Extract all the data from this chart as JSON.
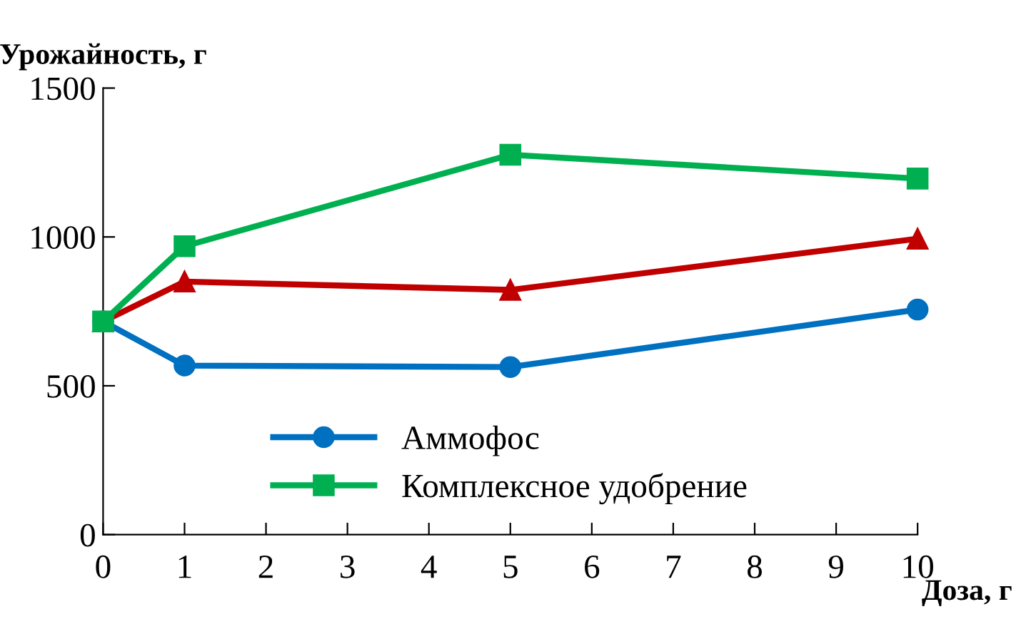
{
  "chart_data": {
    "type": "line",
    "ylabel": "Урожайность, г",
    "xlabel": "Доза, г",
    "x": [
      0,
      1,
      5,
      10
    ],
    "series": [
      {
        "name": "Аммофос",
        "color": "#0070c0",
        "marker": "circle",
        "values": [
          716,
          568,
          563,
          756
        ]
      },
      {
        "color": "#c00000",
        "marker": "triangle",
        "values": [
          716,
          850,
          822,
          994
        ]
      },
      {
        "name": "Комплексное удобрение",
        "color": "#00b050",
        "marker": "square",
        "values": [
          716,
          969,
          1276,
          1196
        ]
      }
    ],
    "xlim": [
      0,
      10
    ],
    "xticks": [
      0,
      1,
      2,
      3,
      4,
      5,
      6,
      7,
      8,
      9,
      10
    ],
    "ylim": [
      0,
      1500
    ],
    "yticks": [
      0,
      500,
      1000,
      1500
    ],
    "grid": false,
    "legend": "bottom",
    "line_style": "solid"
  }
}
